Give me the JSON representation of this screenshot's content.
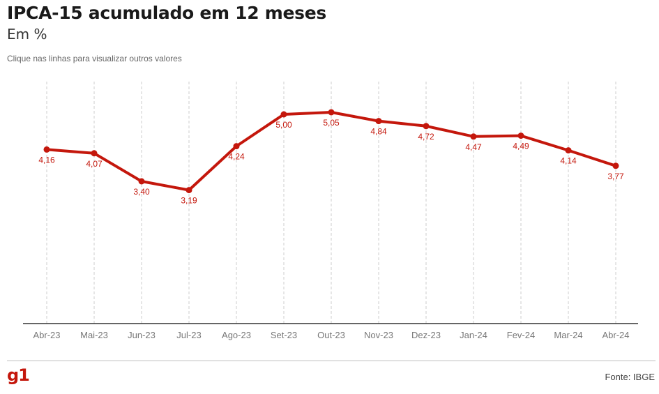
{
  "header": {
    "title": "IPCA-15 acumulado em 12 meses",
    "subtitle": "Em %",
    "hint": "Clique nas linhas para visualizar outros valores"
  },
  "footer": {
    "logo": "g1",
    "source": "Fonte: IBGE"
  },
  "colors": {
    "line": "#c4170c",
    "label": "#c4170c",
    "grid": "#cccccc",
    "axis": "#333333",
    "tick": "#777777"
  },
  "chart_data": {
    "type": "line",
    "title": "IPCA-15 acumulado em 12 meses",
    "subtitle": "Em %",
    "categories": [
      "Abr-23",
      "Mai-23",
      "Jun-23",
      "Jul-23",
      "Ago-23",
      "Set-23",
      "Out-23",
      "Nov-23",
      "Dez-23",
      "Jan-24",
      "Fev-24",
      "Mar-24",
      "Abr-24"
    ],
    "series": [
      {
        "values": [
          4.16,
          4.07,
          3.4,
          3.19,
          4.24,
          5.0,
          5.05,
          4.84,
          4.72,
          4.47,
          4.49,
          4.14,
          3.77
        ],
        "labels": [
          "4,16",
          "4,07",
          "3,40",
          "3,19",
          "4,24",
          "5,00",
          "5,05",
          "4,84",
          "4,72",
          "4,47",
          "4,49",
          "4,14",
          "3,77"
        ]
      }
    ],
    "ylim": [
      0,
      5.45
    ],
    "grid": "vertical dashed",
    "legend": "none"
  }
}
